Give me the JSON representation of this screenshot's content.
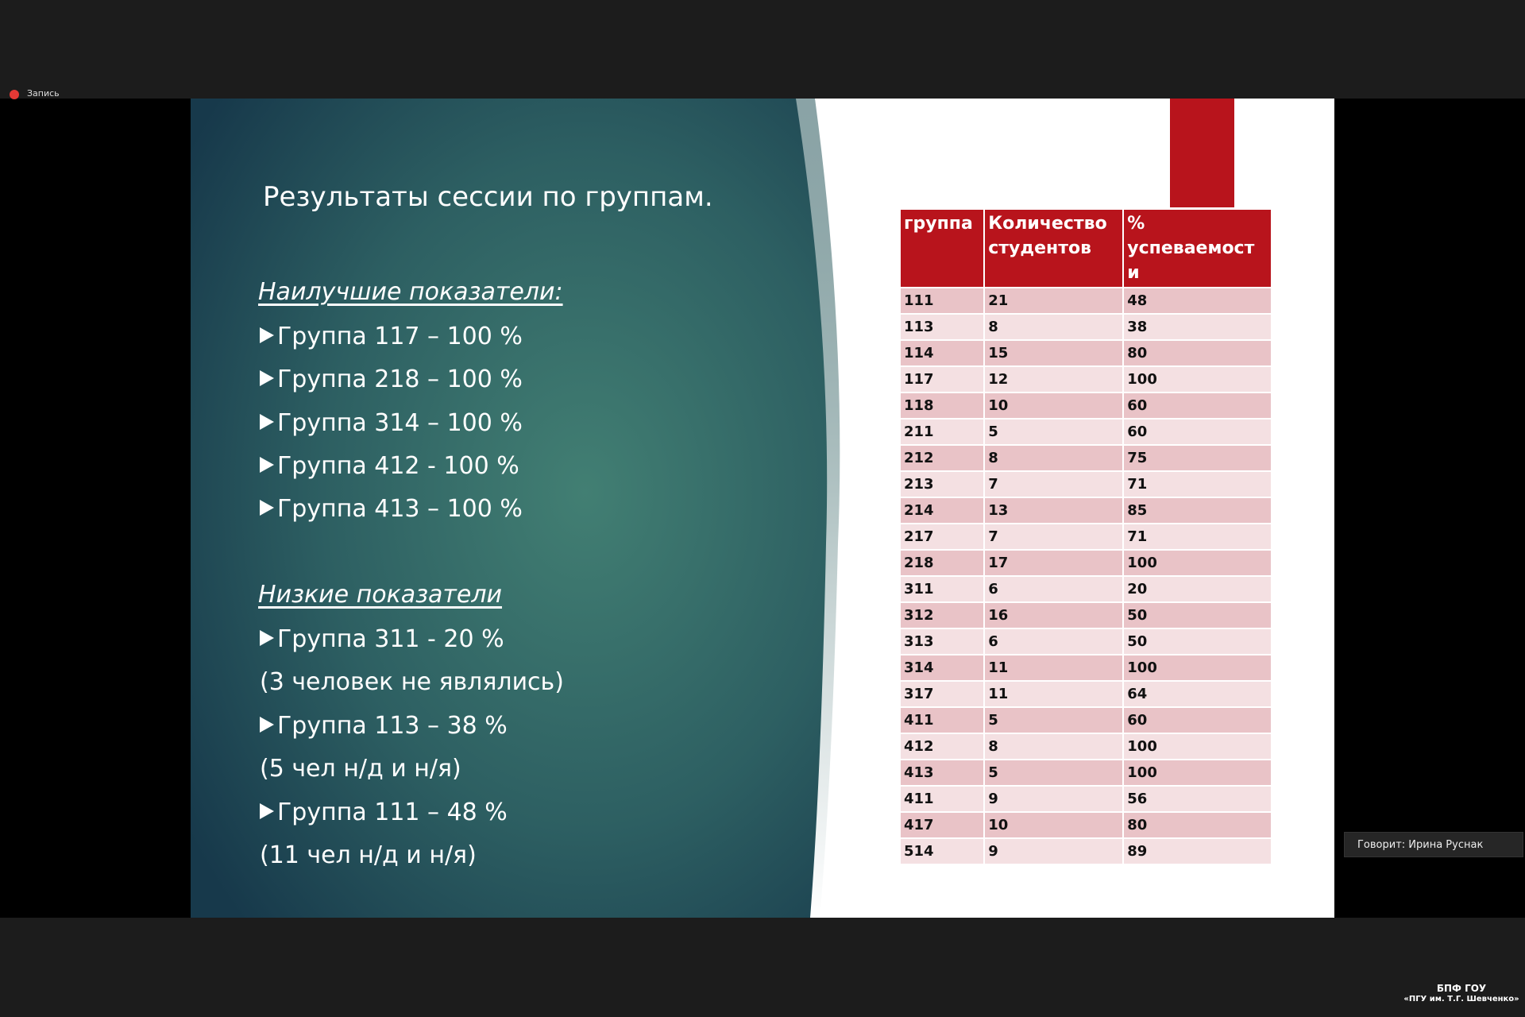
{
  "recording": "Запись",
  "slide": {
    "title": "Результаты сессии по группам.",
    "best_heading": "Наилучшие показатели:",
    "best_items": [
      "Группа 117 – 100 %",
      "Группа 218 – 100 %",
      "Группа 314 – 100 %",
      "Группа 412 - 100 %",
      "Группа 413 – 100 %"
    ],
    "low_heading": "Низкие показатели",
    "low_items": [
      {
        "text": "Группа 311 - 20 %",
        "note": "(3 человек не являлись)"
      },
      {
        "text": "Группа 113 – 38 %",
        "note": "(5 чел н/д и н/я)"
      },
      {
        "text": "Группа 111 – 48 %",
        "note": "(11 чел н/д и н/я)"
      }
    ],
    "table": {
      "header": [
        [
          "группа"
        ],
        [
          "Количество",
          "студентов"
        ],
        [
          "%",
          "успеваемост",
          "и"
        ]
      ],
      "rows": [
        [
          111,
          21,
          48
        ],
        [
          113,
          8,
          38
        ],
        [
          114,
          15,
          80
        ],
        [
          117,
          12,
          100
        ],
        [
          118,
          10,
          60
        ],
        [
          211,
          5,
          60
        ],
        [
          212,
          8,
          75
        ],
        [
          213,
          7,
          71
        ],
        [
          214,
          13,
          85
        ],
        [
          217,
          7,
          71
        ],
        [
          218,
          17,
          100
        ],
        [
          311,
          6,
          20
        ],
        [
          312,
          16,
          50
        ],
        [
          313,
          6,
          50
        ],
        [
          314,
          11,
          100
        ],
        [
          317,
          11,
          64
        ],
        [
          411,
          5,
          60
        ],
        [
          412,
          8,
          100
        ],
        [
          413,
          5,
          100
        ],
        [
          411,
          9,
          56
        ],
        [
          417,
          10,
          80
        ],
        [
          514,
          9,
          89
        ]
      ]
    }
  },
  "speaker": "Говорит: Ирина Руснак",
  "logo": [
    "БПФ ГОУ",
    "«ПГУ им. Т.Г. Шевченко»"
  ]
}
